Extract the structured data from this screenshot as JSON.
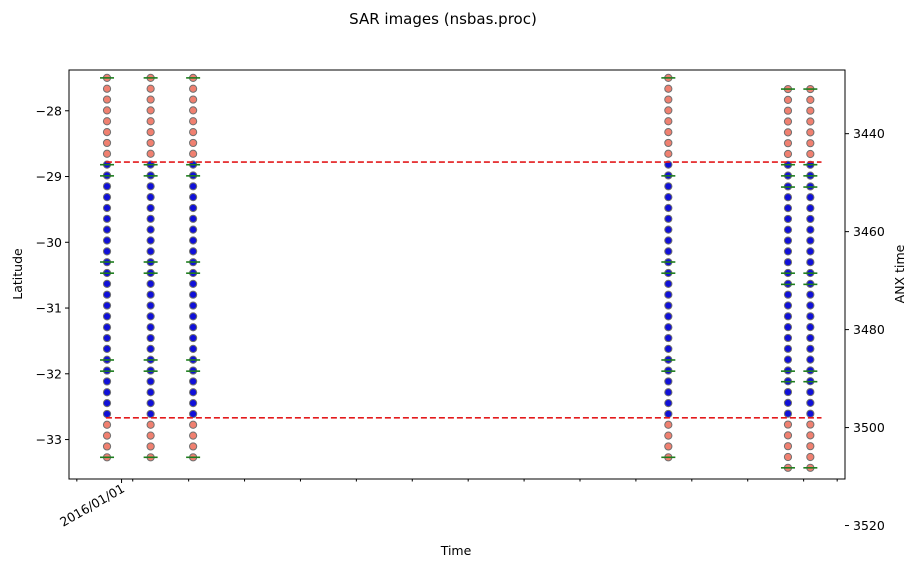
{
  "chart_data": {
    "type": "scatter",
    "title": "SAR images (nsbas.proc)",
    "xlabel": "Time",
    "ylabel": "Latitude",
    "y2label": "ANX time",
    "x_tick_labels": [
      {
        "x": 2016.0,
        "label": "2016/01/01"
      }
    ],
    "xlim": [
      2015.53,
      2022.47
    ],
    "x_minor_ticks": [
      2015.6,
      2016.1,
      2016.6,
      2017.1,
      2017.6,
      2018.1,
      2018.6,
      2019.1,
      2019.6,
      2020.1,
      2020.6,
      2021.1,
      2021.6,
      2022.1,
      2022.4
    ],
    "ylim": [
      -33.6,
      -27.38
    ],
    "y_ticks": [
      -28,
      -29,
      -30,
      -31,
      -32,
      -33
    ],
    "y_tick_labels": [
      "−28",
      "−29",
      "−30",
      "−31",
      "−32",
      "−33"
    ],
    "y2lim": [
      3510.5,
      3427.0
    ],
    "y2_ticks": [
      3440,
      3460,
      3480,
      3500,
      3520
    ],
    "y2_tick_labels": [
      "3440",
      "3460",
      "3480",
      "3500",
      "3520"
    ],
    "aoi_lines": {
      "lat_top": -28.78,
      "lat_bottom": -32.67,
      "x_start": 2015.86,
      "x_end": 2022.26,
      "color": "#e31a1c"
    },
    "acquisitions": [
      {
        "date": 2015.87,
        "lat_top": -27.5,
        "lat_bottom": -33.27,
        "burst_boundaries": [
          -27.5,
          -28.82,
          -28.99,
          -30.3,
          -30.47,
          -31.79,
          -31.96,
          -33.27
        ]
      },
      {
        "date": 2016.26,
        "lat_top": -27.5,
        "lat_bottom": -33.27,
        "burst_boundaries": [
          -27.5,
          -28.82,
          -28.99,
          -30.3,
          -30.47,
          -31.79,
          -31.96,
          -33.27
        ]
      },
      {
        "date": 2016.64,
        "lat_top": -27.5,
        "lat_bottom": -33.27,
        "burst_boundaries": [
          -27.5,
          -28.82,
          -28.99,
          -30.3,
          -30.47,
          -31.79,
          -31.96,
          -33.27
        ]
      },
      {
        "date": 2020.89,
        "lat_top": -27.5,
        "lat_bottom": -33.27,
        "burst_boundaries": [
          -27.5,
          -28.99,
          -30.3,
          -30.47,
          -31.79,
          -31.96,
          -33.27
        ]
      },
      {
        "date": 2021.96,
        "lat_top": -27.67,
        "lat_bottom": -33.43,
        "burst_boundaries": [
          -27.67,
          -28.82,
          -28.99,
          -29.16,
          -30.47,
          -30.64,
          -31.96,
          -32.12,
          -33.43
        ]
      },
      {
        "date": 2022.16,
        "lat_top": -27.67,
        "lat_bottom": -33.43,
        "burst_boundaries": [
          -27.67,
          -28.82,
          -28.99,
          -29.16,
          -30.47,
          -30.64,
          -31.96,
          -32.12,
          -33.43
        ]
      }
    ],
    "point_spacing": 0.1655,
    "colors": {
      "inside_fill": "#1010d8",
      "outside_fill": "#f08070",
      "marker_edge": "#707070",
      "burst_line": "#1e7d1e",
      "aoi_line": "#e31a1c"
    },
    "grid": false
  }
}
